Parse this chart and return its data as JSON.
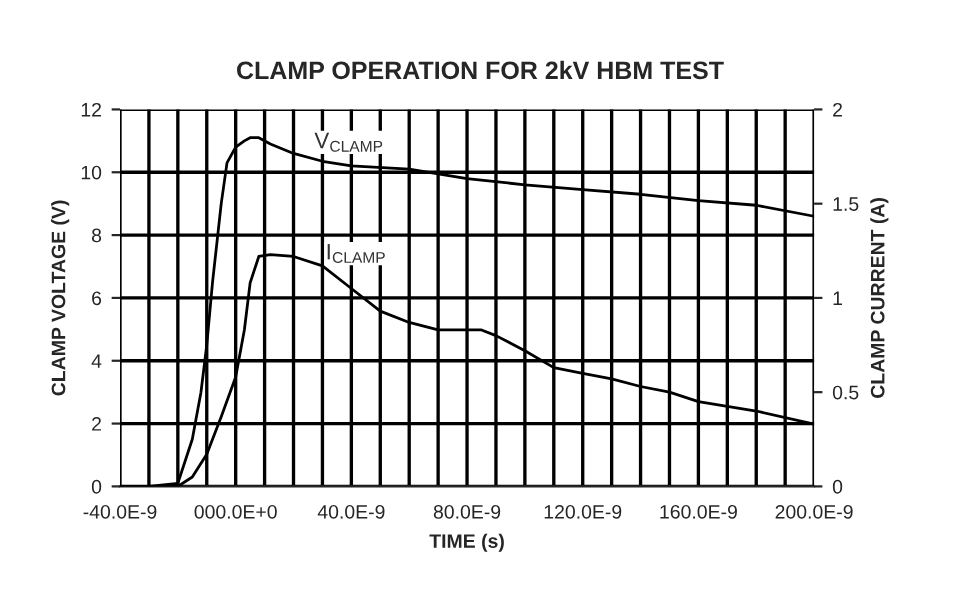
{
  "chart_data": {
    "type": "line",
    "title": "CLAMP OPERATION FOR 2kV HBM TEST",
    "xlabel": "TIME (s)",
    "ylabel": "CLAMP VOLTAGE (V)",
    "y2label": "CLAMP CURRENT (A)",
    "annotations": [
      "V$_{CLAMP}$",
      "I$_{CLAMP}$"
    ],
    "series": [
      {
        "color": "#000000",
        "x": [
          -4e-08,
          -3e-08,
          -2e-08,
          -1.5e-08,
          -1.2e-08,
          -1e-08,
          -8e-09,
          -5e-09,
          -3e-09,
          0,
          3e-09,
          5e-09,
          8e-09,
          1.2e-08,
          2e-08,
          3e-08,
          4e-08,
          6e-08,
          8e-08,
          1e-07,
          1.2e-07,
          1.4e-07,
          1.6e-07,
          1.8e-07,
          2e-07
        ],
        "values": [
          0,
          0,
          0.1,
          1.5,
          3,
          4.5,
          6.5,
          9,
          10.3,
          10.8,
          11.0,
          11.1,
          11.1,
          10.9,
          10.6,
          10.35,
          10.2,
          10.1,
          9.8,
          9.6,
          9.45,
          9.3,
          9.1,
          8.95,
          8.6
        ]
      },
      {
        "color": "#000000",
        "axis": "y2",
        "x": [
          -4e-08,
          -3e-08,
          -2e-08,
          -1.5e-08,
          -1e-08,
          -5e-09,
          0,
          3e-09,
          5e-09,
          8e-09,
          1.2e-08,
          2e-08,
          3e-08,
          4e-08,
          5e-08,
          6e-08,
          7e-08,
          8.5e-08,
          9e-08,
          1e-07,
          1.1e-07,
          1.2e-07,
          1.3e-07,
          1.4e-07,
          1.5e-07,
          1.6e-07,
          1.8e-07,
          2e-07
        ],
        "values": [
          0,
          0,
          0,
          0.05,
          0.17,
          0.37,
          0.58,
          0.83,
          1.08,
          1.22,
          1.23,
          1.22,
          1.17,
          1.05,
          0.93,
          0.87,
          0.83,
          0.83,
          0.8,
          0.72,
          0.63,
          0.6,
          0.57,
          0.53,
          0.5,
          0.45,
          0.4,
          0.33
        ]
      }
    ],
    "xlim": [
      -4e-08,
      2e-07
    ],
    "xticks": [
      {
        "value": -4e-08,
        "label": "-40.0E-9"
      },
      {
        "value": -3e-08,
        "label": null
      },
      {
        "value": -2e-08,
        "label": null
      },
      {
        "value": -1e-08,
        "label": null
      },
      {
        "value": 0,
        "label": "000.0E+0"
      },
      {
        "value": 1e-08,
        "label": null
      },
      {
        "value": 2e-08,
        "label": null
      },
      {
        "value": 3e-08,
        "label": null
      },
      {
        "value": 4e-08,
        "label": "40.0E-9"
      },
      {
        "value": 5e-08,
        "label": null
      },
      {
        "value": 6e-08,
        "label": null
      },
      {
        "value": 7e-08,
        "label": null
      },
      {
        "value": 8e-08,
        "label": "80.0E-9"
      },
      {
        "value": 9e-08,
        "label": null
      },
      {
        "value": 1e-07,
        "label": null
      },
      {
        "value": 1.1e-07,
        "label": null
      },
      {
        "value": 1.2e-07,
        "label": "120.0E-9"
      },
      {
        "value": 1.3e-07,
        "label": null
      },
      {
        "value": 1.4e-07,
        "label": null
      },
      {
        "value": 1.5e-07,
        "label": null
      },
      {
        "value": 1.6e-07,
        "label": "160.0E-9"
      },
      {
        "value": 1.7e-07,
        "label": null
      },
      {
        "value": 1.8e-07,
        "label": null
      },
      {
        "value": 1.9e-07,
        "label": null
      },
      {
        "value": 2e-07,
        "label": "200.0E-9"
      }
    ],
    "ylim": [
      0,
      12
    ],
    "yticks": [
      0,
      2,
      4,
      6,
      8,
      10,
      12
    ],
    "y2lim": [
      0,
      2
    ],
    "y2ticks": [
      0,
      0.5,
      1,
      1.5,
      2
    ],
    "grid": true
  }
}
